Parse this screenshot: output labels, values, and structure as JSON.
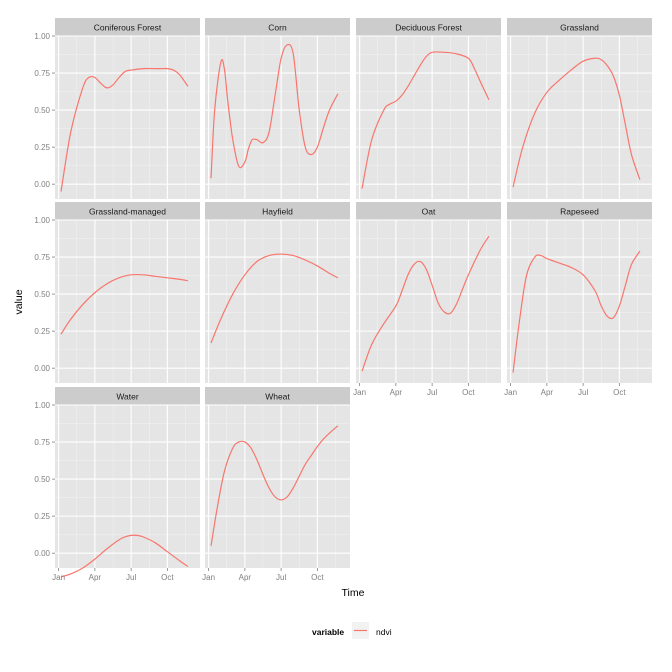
{
  "chart_data": {
    "type": "line",
    "facet_layout": "wrap",
    "xlabel": "Time",
    "ylabel": "value",
    "x_ticks": [
      "Jan",
      "Apr",
      "Jul",
      "Oct"
    ],
    "x_tick_values": [
      0,
      3,
      6,
      9
    ],
    "xlim": [
      -0.3,
      11.7
    ],
    "y_ticks": [
      "0.00",
      "0.25",
      "0.50",
      "0.75",
      "1.00"
    ],
    "y_tick_values": [
      0,
      0.25,
      0.5,
      0.75,
      1.0
    ],
    "ylim": [
      -0.1,
      1.0
    ],
    "legend": {
      "title": "variable",
      "position": "bottom",
      "entries": [
        "ndvi"
      ]
    },
    "series_color": "#F8766D",
    "panel_background": "#E5E5E5",
    "strip_background": "#CCCCCC",
    "grid": true,
    "panels": [
      {
        "title": "Coniferous Forest",
        "x": [
          0.2,
          1.0,
          2.0,
          2.5,
          3.0,
          3.5,
          4.0,
          4.5,
          5.0,
          5.5,
          6.0,
          7.0,
          8.0,
          8.5,
          9.0,
          9.5,
          10.0,
          10.7
        ],
        "y": [
          -0.05,
          0.35,
          0.65,
          0.72,
          0.72,
          0.68,
          0.65,
          0.67,
          0.72,
          0.76,
          0.77,
          0.78,
          0.78,
          0.78,
          0.78,
          0.77,
          0.74,
          0.66
        ]
      },
      {
        "title": "Corn",
        "x": [
          0.2,
          0.5,
          1.0,
          1.3,
          1.6,
          2.0,
          2.5,
          3.0,
          3.3,
          3.6,
          4.0,
          4.5,
          5.0,
          5.5,
          6.0,
          6.5,
          7.0,
          7.5,
          8.0,
          8.5,
          9.0,
          9.5,
          10.0,
          10.7
        ],
        "y": [
          0.04,
          0.5,
          0.82,
          0.78,
          0.55,
          0.3,
          0.12,
          0.15,
          0.24,
          0.3,
          0.3,
          0.28,
          0.35,
          0.6,
          0.85,
          0.94,
          0.88,
          0.5,
          0.25,
          0.2,
          0.25,
          0.38,
          0.5,
          0.61
        ]
      },
      {
        "title": "Deciduous Forest",
        "x": [
          0.2,
          1.0,
          2.0,
          2.5,
          3.0,
          3.5,
          4.0,
          4.5,
          5.0,
          5.5,
          6.0,
          7.0,
          8.0,
          9.0,
          9.5,
          10.0,
          10.7
        ],
        "y": [
          -0.03,
          0.3,
          0.5,
          0.54,
          0.56,
          0.6,
          0.66,
          0.73,
          0.8,
          0.86,
          0.89,
          0.89,
          0.88,
          0.85,
          0.78,
          0.69,
          0.57
        ]
      },
      {
        "title": "Grassland",
        "x": [
          0.2,
          1.0,
          2.0,
          3.0,
          4.0,
          5.0,
          6.0,
          7.0,
          7.5,
          8.0,
          8.5,
          9.0,
          9.5,
          10.0,
          10.7
        ],
        "y": [
          -0.02,
          0.25,
          0.48,
          0.62,
          0.7,
          0.77,
          0.83,
          0.85,
          0.84,
          0.8,
          0.73,
          0.6,
          0.4,
          0.2,
          0.03
        ]
      },
      {
        "title": "Grassland-managed",
        "x": [
          0.2,
          1.0,
          2.0,
          3.0,
          4.0,
          5.0,
          6.0,
          7.0,
          8.0,
          9.0,
          10.0,
          10.7
        ],
        "y": [
          0.23,
          0.33,
          0.43,
          0.51,
          0.57,
          0.61,
          0.63,
          0.63,
          0.62,
          0.61,
          0.6,
          0.59
        ]
      },
      {
        "title": "Hayfield",
        "x": [
          0.2,
          1.0,
          2.0,
          3.0,
          4.0,
          5.0,
          6.0,
          7.0,
          8.0,
          9.0,
          10.0,
          10.7
        ],
        "y": [
          0.17,
          0.33,
          0.5,
          0.63,
          0.72,
          0.76,
          0.77,
          0.76,
          0.73,
          0.69,
          0.64,
          0.61
        ]
      },
      {
        "title": "Oat",
        "x": [
          0.2,
          1.0,
          2.0,
          3.0,
          3.5,
          4.0,
          4.5,
          5.0,
          5.5,
          6.0,
          6.5,
          7.0,
          7.5,
          8.0,
          8.5,
          9.0,
          10.0,
          10.7
        ],
        "y": [
          -0.02,
          0.16,
          0.3,
          0.42,
          0.52,
          0.63,
          0.7,
          0.72,
          0.67,
          0.56,
          0.44,
          0.38,
          0.37,
          0.43,
          0.53,
          0.63,
          0.8,
          0.89
        ]
      },
      {
        "title": "Rapeseed",
        "x": [
          0.2,
          0.7,
          1.3,
          2.0,
          2.5,
          3.0,
          4.0,
          5.0,
          6.0,
          7.0,
          7.5,
          8.0,
          8.5,
          9.0,
          9.5,
          10.0,
          10.7
        ],
        "y": [
          -0.03,
          0.3,
          0.62,
          0.75,
          0.76,
          0.74,
          0.71,
          0.68,
          0.63,
          0.52,
          0.42,
          0.35,
          0.34,
          0.42,
          0.56,
          0.7,
          0.79
        ]
      },
      {
        "title": "Water",
        "x": [
          0.2,
          1.0,
          2.0,
          3.0,
          4.0,
          5.0,
          5.5,
          6.0,
          6.5,
          7.0,
          8.0,
          9.0,
          10.0,
          10.7
        ],
        "y": [
          -0.16,
          -0.14,
          -0.1,
          -0.04,
          0.03,
          0.09,
          0.11,
          0.12,
          0.12,
          0.11,
          0.07,
          0.01,
          -0.05,
          -0.09
        ]
      },
      {
        "title": "Wheat",
        "x": [
          0.2,
          0.7,
          1.3,
          2.0,
          2.5,
          3.0,
          3.5,
          4.0,
          4.5,
          5.0,
          5.5,
          6.0,
          6.5,
          7.0,
          7.5,
          8.0,
          8.5,
          9.0,
          9.5,
          10.0,
          10.7
        ],
        "y": [
          0.05,
          0.3,
          0.55,
          0.71,
          0.75,
          0.75,
          0.71,
          0.63,
          0.53,
          0.44,
          0.38,
          0.36,
          0.38,
          0.44,
          0.52,
          0.6,
          0.66,
          0.72,
          0.77,
          0.81,
          0.86
        ]
      }
    ]
  }
}
